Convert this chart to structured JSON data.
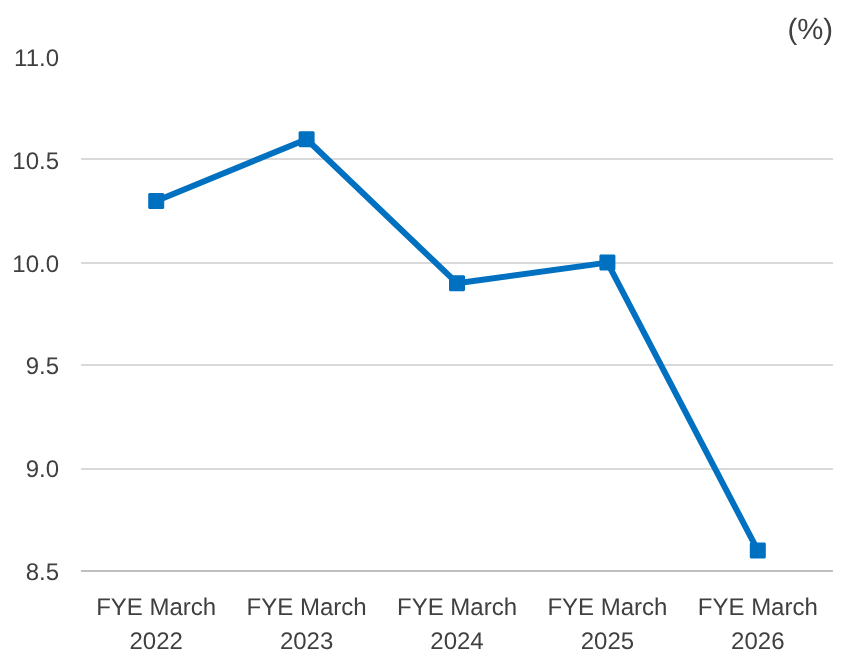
{
  "chart_data": {
    "type": "line",
    "ylabel": "(%)",
    "categories": [
      "FYE March\n2022",
      "FYE March\n2023",
      "FYE March\n2024",
      "FYE March\n2025",
      "FYE March\n2026"
    ],
    "series": [
      {
        "color": "#0070c0",
        "values": [
          10.3,
          10.6,
          9.9,
          10.0,
          8.6
        ]
      }
    ],
    "ylim": [
      8.5,
      11.0
    ],
    "yticks": [
      {
        "value": 8.5,
        "label": "8.5"
      },
      {
        "value": 9,
        "label": "9.0"
      },
      {
        "value": 9.5,
        "label": "9.5"
      },
      {
        "value": 10,
        "label": "10.0"
      },
      {
        "value": 10.5,
        "label": "10.5"
      },
      {
        "value": 11,
        "label": "11.0"
      }
    ],
    "grid": "y",
    "marker": "square",
    "line_style": "solid"
  }
}
